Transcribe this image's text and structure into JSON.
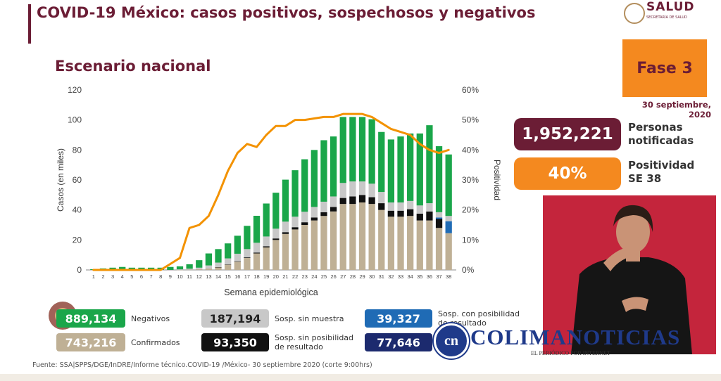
{
  "header": {
    "title": "COVID-19 México: casos positivos, sospechosos y negativos",
    "subtitle": "Escenario nacional",
    "logo_text": "SALUD",
    "logo_subtext": "SECRETARÍA DE SALUD"
  },
  "phase": {
    "label": "Fase 3",
    "date": "30 septiembre, 2020"
  },
  "kpis": {
    "notified_value": "1,952,221",
    "notified_label_1": "Personas",
    "notified_label_2": "notificadas",
    "positivity_value": "40%",
    "positivity_label_1": "Positividad",
    "positivity_label_2": "SE 38"
  },
  "legend": [
    {
      "key": "negativos",
      "value": "889,134",
      "label": "Negativos",
      "color": "#1aa64a"
    },
    {
      "key": "confirmados",
      "value": "743,216",
      "label": "Confirmados",
      "color": "#bfb095"
    },
    {
      "key": "sosp_sin_muestra",
      "value": "187,194",
      "label": "Sosp. sin muestra",
      "color": "#c8c8c8"
    },
    {
      "key": "sosp_sin_posibilidad",
      "value": "93,350",
      "label_1": "Sosp. sin posibilidad",
      "label_2": "de resultado",
      "color": "#111111"
    },
    {
      "key": "sosp_con_posibilidad",
      "value": "39,327",
      "label_1": "Sosp. con posibilidad",
      "label_2": "de resultado",
      "color": "#1f6bb5"
    },
    {
      "key": "total_sosp",
      "value": "77,646",
      "color": "#1c2a6e"
    }
  ],
  "footer": "Fuente: SSA|SPPS/DGE/InDRE/Informe técnico.COVID-19 /México- 30 septiembre 2020 (corte 9:00hrs)",
  "watermark": {
    "name": "COLIMANOTICIAS",
    "tagline": "EL PERIÓDICO POR INTERNET",
    "monogram": "cn"
  },
  "chart_data": {
    "type": "bar",
    "xlabel": "Semana epidemiológica",
    "ylabel": "Casos (en miles)",
    "y2label": "Positividad",
    "ylim": [
      0,
      120
    ],
    "yticks": [
      "0",
      "20",
      "40",
      "60",
      "80",
      "100",
      "120"
    ],
    "y2lim": [
      0,
      60
    ],
    "y2ticks": [
      "0%",
      "10%",
      "20%",
      "30%",
      "40%",
      "50%",
      "60%"
    ],
    "categories": [
      "1",
      "2",
      "3",
      "4",
      "5",
      "6",
      "7",
      "8",
      "9",
      "10",
      "11",
      "12",
      "13",
      "14",
      "15",
      "16",
      "17",
      "18",
      "19",
      "20",
      "21",
      "22",
      "23",
      "24",
      "25",
      "26",
      "27",
      "28",
      "29",
      "30",
      "31",
      "32",
      "33",
      "34",
      "35",
      "36",
      "37",
      "38"
    ],
    "stacked": true,
    "series": [
      {
        "name": "Confirmados",
        "color": "#bfb095",
        "values": [
          0,
          0,
          0,
          0,
          0,
          0,
          0,
          0,
          0,
          0.1,
          0.2,
          0.5,
          1,
          1.8,
          3.5,
          5.5,
          8,
          11,
          15,
          20,
          24,
          27,
          30,
          33,
          36,
          39,
          44,
          44,
          45,
          44,
          40,
          35.5,
          35.5,
          36,
          33,
          33,
          28,
          24.5
        ]
      },
      {
        "name": "Sosp. sin posibilidad de resultado",
        "color": "#111111",
        "values": [
          0,
          0,
          0,
          0,
          0,
          0,
          0,
          0,
          0,
          0,
          0,
          0,
          0,
          0.1,
          0.2,
          0.3,
          0.4,
          0.6,
          0.8,
          1,
          1.2,
          1.5,
          1.8,
          2,
          2.5,
          3,
          4,
          5,
          5,
          4.5,
          4.5,
          4,
          4,
          4.5,
          4.5,
          6,
          6,
          0
        ]
      },
      {
        "name": "Sosp. con posibilidad de resultado",
        "color": "#1f6bb5",
        "values": [
          0,
          0,
          0,
          0,
          0,
          0,
          0,
          0,
          0,
          0,
          0,
          0,
          0,
          0,
          0,
          0,
          0,
          0,
          0,
          0,
          0,
          0,
          0,
          0,
          0,
          0,
          0,
          0,
          0,
          0,
          0,
          0,
          0,
          0,
          0,
          0,
          1,
          8
        ]
      },
      {
        "name": "Sosp. sin muestra",
        "color": "#c8c8c8",
        "values": [
          0,
          0,
          0,
          0,
          0,
          0,
          0,
          0,
          0,
          0.3,
          0.6,
          1,
          2,
          3,
          4,
          5,
          5.5,
          6.5,
          6.5,
          6.5,
          7,
          7,
          7,
          7,
          7,
          7,
          10,
          10,
          9,
          9,
          7.5,
          5.5,
          5.5,
          5.5,
          5.5,
          5.5,
          3.5,
          3.5
        ]
      },
      {
        "name": "Negativos",
        "color": "#1aa64a",
        "values": [
          0.5,
          1,
          1.5,
          2,
          1.5,
          1.5,
          1.5,
          1.5,
          2,
          2,
          3,
          5,
          8,
          9,
          10,
          12,
          15.5,
          18,
          22,
          24,
          28,
          31,
          35,
          38,
          41,
          40,
          44,
          43,
          43,
          43,
          40,
          42,
          44,
          45,
          48,
          52,
          44,
          41
        ]
      }
    ],
    "line": {
      "name": "Positividad",
      "color": "#f39200",
      "values": [
        0,
        0,
        0,
        0,
        0,
        0,
        0,
        0,
        2,
        4,
        14,
        15,
        18,
        25,
        33,
        39,
        42,
        41,
        45,
        48,
        48,
        50,
        50,
        50.5,
        51,
        51,
        52,
        52,
        52,
        51,
        49,
        47,
        46,
        45,
        42,
        40,
        39,
        40
      ]
    }
  }
}
